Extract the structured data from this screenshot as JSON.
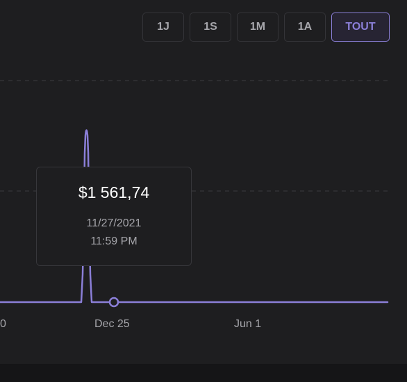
{
  "range_buttons": [
    {
      "label": "1J",
      "active": false
    },
    {
      "label": "1S",
      "active": false
    },
    {
      "label": "1M",
      "active": false
    },
    {
      "label": "1A",
      "active": false
    },
    {
      "label": "TOUT",
      "active": true
    }
  ],
  "tooltip": {
    "value": "$1 561,74",
    "date": "11/27/2021",
    "time": "11:59 PM"
  },
  "x_axis_labels": [
    "0",
    "Dec 25",
    "Jun 1"
  ],
  "colors": {
    "background": "#1e1e20",
    "line": "#8b7fd8",
    "grid": "#3c3c40",
    "text_muted": "#a6a6ab",
    "accent": "#8b7fd8"
  },
  "chart_data": {
    "type": "line",
    "x_tick_labels": [
      "0",
      "Dec 25",
      "Jun 1"
    ],
    "y_tick_labels": [],
    "series": [
      {
        "highlighted_point": {
          "date": "11/27/2021",
          "time": "11:59 PM",
          "value": "$1 561,74"
        }
      }
    ],
    "grid": true
  }
}
